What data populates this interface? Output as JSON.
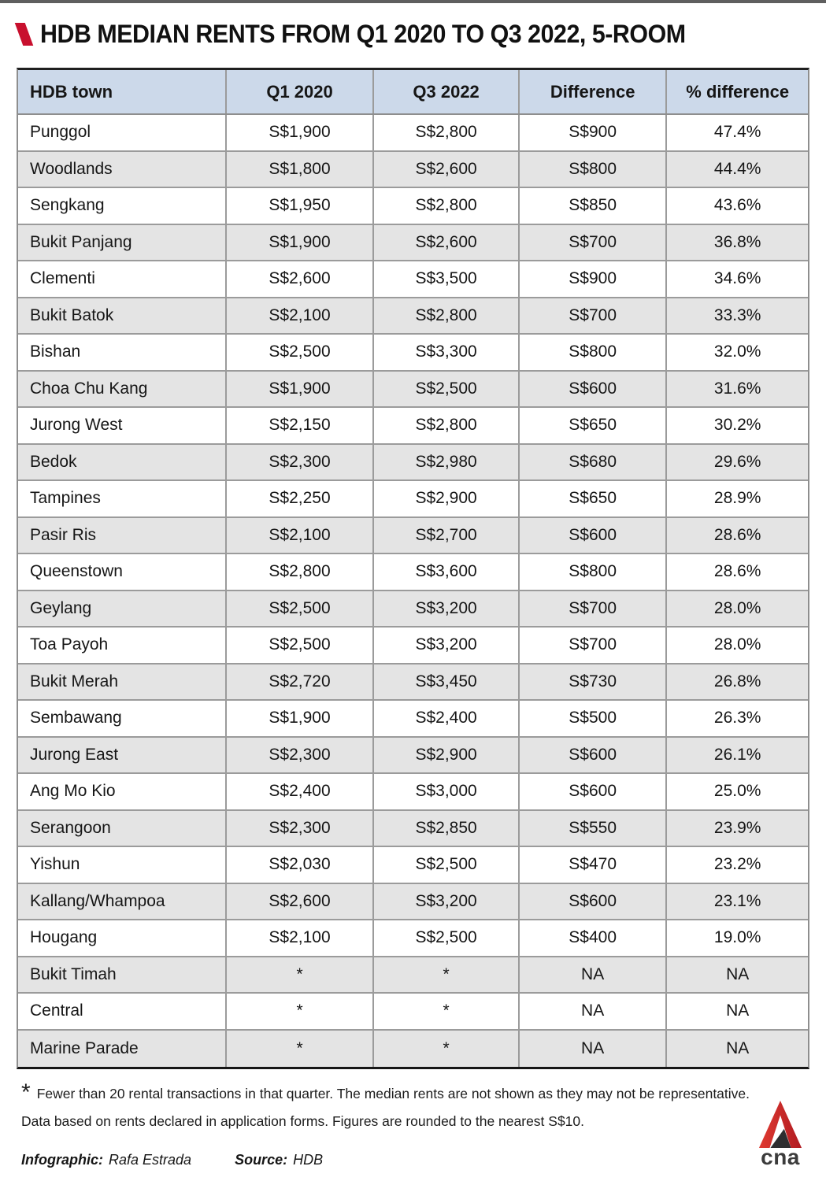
{
  "page": {
    "title": "HDB MEDIAN RENTS FROM Q1 2020 TO Q3 2022, 5-ROOM"
  },
  "chart_data": {
    "type": "table",
    "title": "HDB MEDIAN RENTS FROM Q1 2020 TO Q3 2022, 5-ROOM",
    "columns": [
      "HDB town",
      "Q1 2020",
      "Q3 2022",
      "Difference",
      "% difference"
    ],
    "rows": [
      [
        "Punggol",
        "S$1,900",
        "S$2,800",
        "S$900",
        "47.4%"
      ],
      [
        "Woodlands",
        "S$1,800",
        "S$2,600",
        "S$800",
        "44.4%"
      ],
      [
        "Sengkang",
        "S$1,950",
        "S$2,800",
        "S$850",
        "43.6%"
      ],
      [
        "Bukit Panjang",
        "S$1,900",
        "S$2,600",
        "S$700",
        "36.8%"
      ],
      [
        "Clementi",
        "S$2,600",
        "S$3,500",
        "S$900",
        "34.6%"
      ],
      [
        "Bukit Batok",
        "S$2,100",
        "S$2,800",
        "S$700",
        "33.3%"
      ],
      [
        "Bishan",
        "S$2,500",
        "S$3,300",
        "S$800",
        "32.0%"
      ],
      [
        "Choa Chu Kang",
        "S$1,900",
        "S$2,500",
        "S$600",
        "31.6%"
      ],
      [
        "Jurong West",
        "S$2,150",
        "S$2,800",
        "S$650",
        "30.2%"
      ],
      [
        "Bedok",
        "S$2,300",
        "S$2,980",
        "S$680",
        "29.6%"
      ],
      [
        "Tampines",
        "S$2,250",
        "S$2,900",
        "S$650",
        "28.9%"
      ],
      [
        "Pasir Ris",
        "S$2,100",
        "S$2,700",
        "S$600",
        "28.6%"
      ],
      [
        "Queenstown",
        "S$2,800",
        "S$3,600",
        "S$800",
        "28.6%"
      ],
      [
        "Geylang",
        "S$2,500",
        "S$3,200",
        "S$700",
        "28.0%"
      ],
      [
        "Toa Payoh",
        "S$2,500",
        "S$3,200",
        "S$700",
        "28.0%"
      ],
      [
        "Bukit Merah",
        "S$2,720",
        "S$3,450",
        "S$730",
        "26.8%"
      ],
      [
        "Sembawang",
        "S$1,900",
        "S$2,400",
        "S$500",
        "26.3%"
      ],
      [
        "Jurong East",
        "S$2,300",
        "S$2,900",
        "S$600",
        "26.1%"
      ],
      [
        "Ang Mo Kio",
        "S$2,400",
        "S$3,000",
        "S$600",
        "25.0%"
      ],
      [
        "Serangoon",
        "S$2,300",
        "S$2,850",
        "S$550",
        "23.9%"
      ],
      [
        "Yishun",
        "S$2,030",
        "S$2,500",
        "S$470",
        "23.2%"
      ],
      [
        "Kallang/Whampoa",
        "S$2,600",
        "S$3,200",
        "S$600",
        "23.1%"
      ],
      [
        "Hougang",
        "S$2,100",
        "S$2,500",
        "S$400",
        "19.0%"
      ],
      [
        "Bukit Timah",
        "*",
        "*",
        "NA",
        "NA"
      ],
      [
        "Central",
        "*",
        "*",
        "NA",
        "NA"
      ],
      [
        "Marine Parade",
        "*",
        "*",
        "NA",
        "NA"
      ]
    ]
  },
  "footnotes": {
    "asterisk": "*",
    "line1": "Fewer than 20 rental transactions in that quarter. The median rents are not shown as they may not be representative.",
    "line2": "Data based on rents declared in application forms. Figures are rounded to the nearest S$10."
  },
  "credits": {
    "infographic_label": "Infographic:",
    "infographic_value": "Rafa Estrada",
    "source_label": "Source:",
    "source_value": "HDB"
  },
  "logo": {
    "wordmark": "cna"
  },
  "colors": {
    "accent_red": "#c8102e",
    "logo_red": "#d7232b",
    "logo_dark_wedge": "#2e2e30",
    "header_bg": "#ccd9ea",
    "row_alt_bg": "#e4e4e4",
    "grid_line": "#9b9b9b",
    "topbar": "#5f5f5f"
  }
}
